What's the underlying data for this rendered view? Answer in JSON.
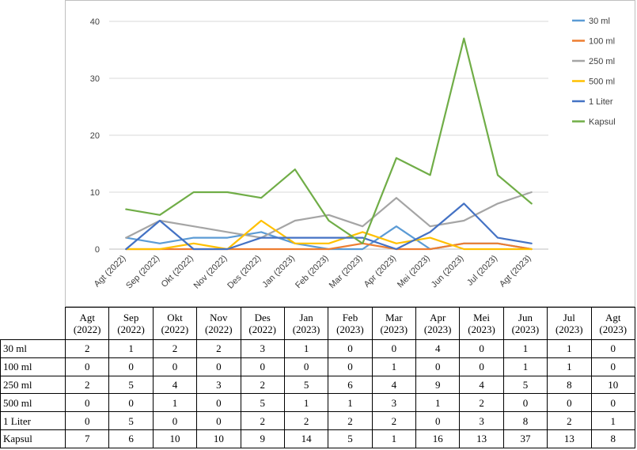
{
  "colors": {
    "30 ml": "#5b9bd5",
    "100 ml": "#ed7d31",
    "250 ml": "#a5a5a5",
    "500 ml": "#ffc000",
    "1 Liter": "#4472c4",
    "Kapsul": "#70ad47"
  },
  "chart_data": {
    "type": "line",
    "title": "",
    "xlabel": "",
    "ylabel": "",
    "ylim": [
      0,
      40
    ],
    "yticks": [
      0,
      10,
      20,
      30,
      40
    ],
    "grid": true,
    "legend_position": "right",
    "categories": [
      "Agt (2022)",
      "Sep (2022)",
      "Okt (2022)",
      "Nov (2022)",
      "Des (2022)",
      "Jan (2023)",
      "Feb (2023)",
      "Mar (2023)",
      "Apr (2023)",
      "Mei (2023)",
      "Jun (2023)",
      "Jul (2023)",
      "Agt (2023)"
    ],
    "series": [
      {
        "name": "30 ml",
        "values": [
          2,
          1,
          2,
          2,
          3,
          1,
          0,
          0,
          4,
          0,
          1,
          1,
          0
        ]
      },
      {
        "name": "100 ml",
        "values": [
          0,
          0,
          0,
          0,
          0,
          0,
          0,
          1,
          0,
          0,
          1,
          1,
          0
        ]
      },
      {
        "name": "250 ml",
        "values": [
          2,
          5,
          4,
          3,
          2,
          5,
          6,
          4,
          9,
          4,
          5,
          8,
          10
        ]
      },
      {
        "name": "500 ml",
        "values": [
          0,
          0,
          1,
          0,
          5,
          1,
          1,
          3,
          1,
          2,
          0,
          0,
          0
        ]
      },
      {
        "name": "1 Liter",
        "values": [
          0,
          5,
          0,
          0,
          2,
          2,
          2,
          2,
          0,
          3,
          8,
          2,
          1
        ]
      },
      {
        "name": "Kapsul",
        "values": [
          7,
          6,
          10,
          10,
          9,
          14,
          5,
          1,
          16,
          13,
          37,
          13,
          8
        ]
      }
    ]
  },
  "table": {
    "columns": [
      [
        "Agt",
        "(2022)"
      ],
      [
        "Sep",
        "(2022)"
      ],
      [
        "Okt",
        "(2022)"
      ],
      [
        "Nov",
        "(2022)"
      ],
      [
        "Des",
        "(2022)"
      ],
      [
        "Jan",
        "(2023)"
      ],
      [
        "Feb",
        "(2023)"
      ],
      [
        "Mar",
        "(2023)"
      ],
      [
        "Apr",
        "(2023)"
      ],
      [
        "Mei",
        "(2023)"
      ],
      [
        "Jun",
        "(2023)"
      ],
      [
        "Jul",
        "(2023)"
      ],
      [
        "Agt",
        "(2023)"
      ]
    ],
    "rows": [
      {
        "label": "30 ml",
        "values": [
          "2",
          "1",
          "2",
          "2",
          "3",
          "1",
          "0",
          "0",
          "4",
          "0",
          "1",
          "1",
          "0"
        ]
      },
      {
        "label": "100 ml",
        "values": [
          "0",
          "0",
          "0",
          "0",
          "0",
          "0",
          "0",
          "1",
          "0",
          "0",
          "1",
          "1",
          "0"
        ]
      },
      {
        "label": "250 ml",
        "values": [
          "2",
          "5",
          "4",
          "3",
          "2",
          "5",
          "6",
          "4",
          "9",
          "4",
          "5",
          "8",
          "10"
        ]
      },
      {
        "label": "500 ml",
        "values": [
          "0",
          "0",
          "1",
          "0",
          "5",
          "1",
          "1",
          "3",
          "1",
          "2",
          "0",
          "0",
          "0"
        ]
      },
      {
        "label": "1 Liter",
        "values": [
          "0",
          "5",
          "0",
          "0",
          "2",
          "2",
          "2",
          "2",
          "0",
          "3",
          "8",
          "2",
          "1"
        ]
      },
      {
        "label": "Kapsul",
        "values": [
          "7",
          "6",
          "10",
          "10",
          "9",
          "14",
          "5",
          "1",
          "16",
          "13",
          "37",
          "13",
          "8"
        ]
      }
    ]
  }
}
